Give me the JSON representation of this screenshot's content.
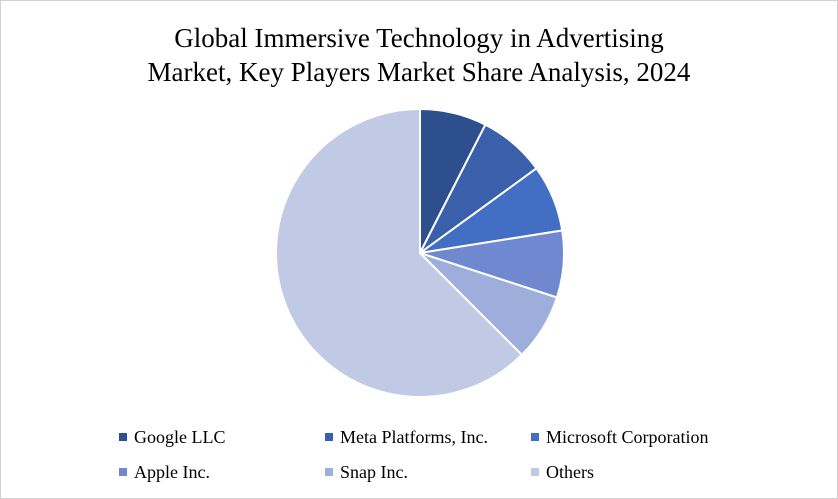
{
  "chart_data": {
    "type": "pie",
    "title_lines": [
      "Global Immersive Technology in Advertising",
      "Market, Key Players Market Share Analysis, 2024"
    ],
    "slices": [
      {
        "label": "Google LLC",
        "value": 7.5,
        "color": "#2e4f8e"
      },
      {
        "label": "Meta Platforms, Inc.",
        "value": 7.5,
        "color": "#3a5fab"
      },
      {
        "label": "Microsoft Corporation",
        "value": 7.5,
        "color": "#426fc4"
      },
      {
        "label": "Apple Inc.",
        "value": 7.5,
        "color": "#7088cf"
      },
      {
        "label": "Snap Inc.",
        "value": 7.5,
        "color": "#9eaedc"
      },
      {
        "label": "Others",
        "value": 62.5,
        "color": "#c0cae5"
      }
    ],
    "start_angle_deg": 0,
    "direction": "clockwise",
    "legend_position": "bottom"
  }
}
